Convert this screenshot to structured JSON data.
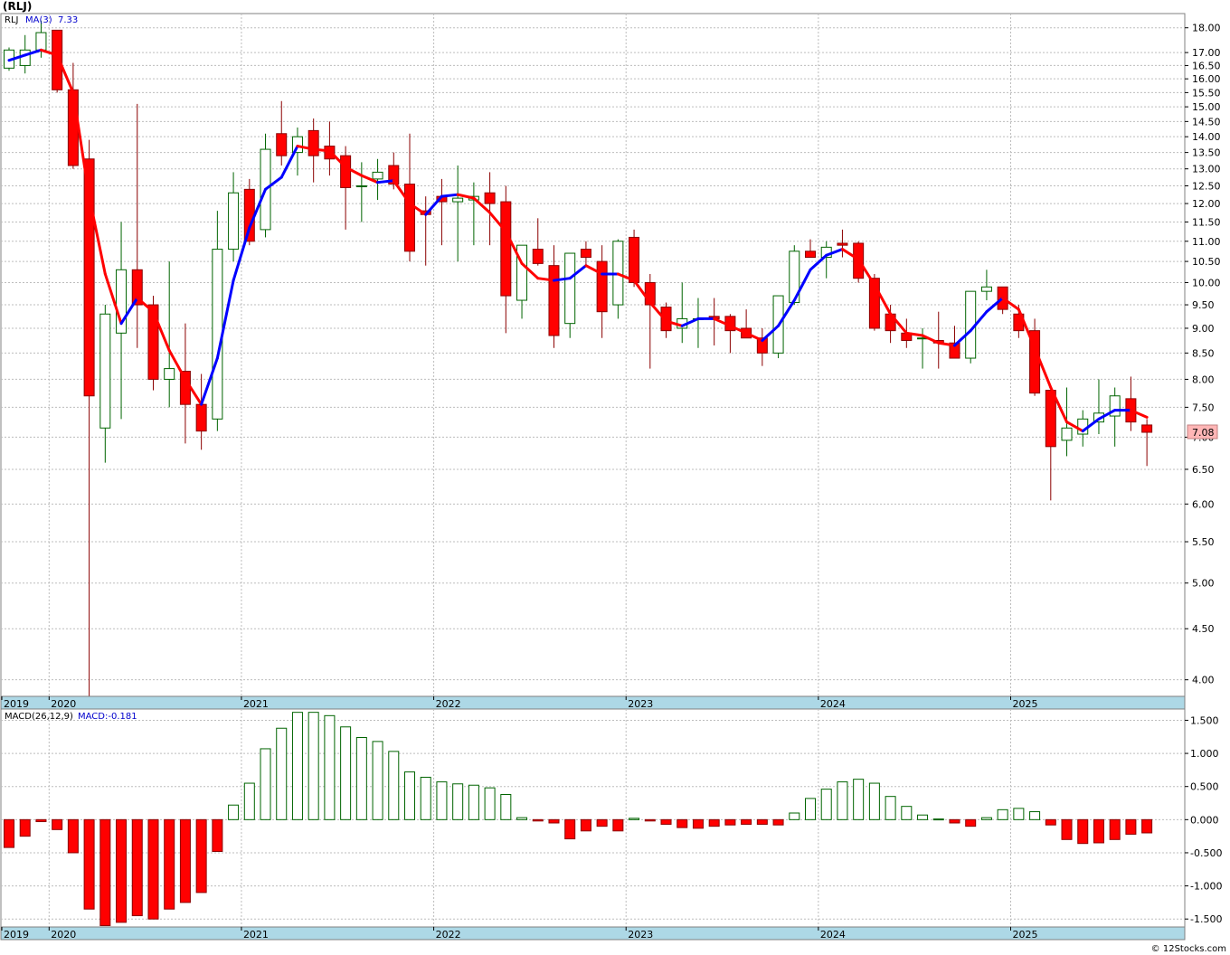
{
  "title": "(RLJ)",
  "price_panel": {
    "legend_symbol": "RLJ",
    "legend_ma_label": "MA(3)",
    "legend_ma_value": "7.33",
    "last_price_label": "7.08"
  },
  "macd_panel": {
    "legend_label": "MACD(26,12,9)",
    "legend_value": "MACD:-0.181"
  },
  "watermark": "© 12Stocks.com",
  "colors": {
    "up_body": "#ffffff",
    "up_outline": "#006400",
    "down_body": "#ff0000",
    "down_outline": "#8b0000",
    "ma_up": "#0000ff",
    "ma_down": "#ff0000",
    "year_bar": "#add8e6",
    "grid": "#bdbdbd"
  },
  "chart_data": [
    {
      "type": "candlestick",
      "interval": "monthly",
      "scale": "log",
      "ylim": [
        3.85,
        18.6
      ],
      "y_ticks": [
        "4.00",
        "4.50",
        "5.00",
        "5.50",
        "6.00",
        "6.50",
        "7.00",
        "7.50",
        "8.00",
        "8.50",
        "9.00",
        "9.50",
        "10.00",
        "10.50",
        "11.00",
        "11.50",
        "12.00",
        "12.50",
        "13.00",
        "13.50",
        "14.00",
        "14.50",
        "15.00",
        "15.50",
        "16.00",
        "16.50",
        "17.00",
        "18.00"
      ],
      "x_labels": [
        "2019",
        "2020",
        "2021",
        "2022",
        "2023",
        "2024",
        "2025"
      ],
      "year_start_index": [
        0,
        3,
        15,
        27,
        39,
        51,
        63
      ],
      "candles": [
        {
          "o": 16.4,
          "h": 17.2,
          "l": 16.3,
          "c": 17.1
        },
        {
          "o": 16.5,
          "h": 17.7,
          "l": 16.2,
          "c": 17.1
        },
        {
          "o": 17.1,
          "h": 18.3,
          "l": 16.8,
          "c": 17.8
        },
        {
          "o": 17.9,
          "h": 17.9,
          "l": 15.5,
          "c": 15.6
        },
        {
          "o": 15.6,
          "h": 16.6,
          "l": 13.0,
          "c": 13.1
        },
        {
          "o": 13.3,
          "h": 13.9,
          "l": 3.85,
          "c": 7.7
        },
        {
          "o": 7.15,
          "h": 9.5,
          "l": 6.6,
          "c": 9.3
        },
        {
          "o": 8.9,
          "h": 11.5,
          "l": 7.3,
          "c": 10.3
        },
        {
          "o": 10.3,
          "h": 15.1,
          "l": 8.6,
          "c": 9.5
        },
        {
          "o": 9.5,
          "h": 9.7,
          "l": 7.8,
          "c": 8.0
        },
        {
          "o": 8.0,
          "h": 10.5,
          "l": 7.5,
          "c": 8.2
        },
        {
          "o": 8.15,
          "h": 9.1,
          "l": 6.9,
          "c": 7.55
        },
        {
          "o": 7.55,
          "h": 8.1,
          "l": 6.8,
          "c": 7.1
        },
        {
          "o": 7.3,
          "h": 11.8,
          "l": 7.1,
          "c": 10.8
        },
        {
          "o": 10.8,
          "h": 12.9,
          "l": 10.5,
          "c": 12.3
        },
        {
          "o": 12.4,
          "h": 12.7,
          "l": 10.9,
          "c": 11.0
        },
        {
          "o": 11.3,
          "h": 14.1,
          "l": 11.1,
          "c": 13.6
        },
        {
          "o": 14.1,
          "h": 15.2,
          "l": 13.1,
          "c": 13.4
        },
        {
          "o": 13.5,
          "h": 14.3,
          "l": 12.8,
          "c": 14.0
        },
        {
          "o": 14.2,
          "h": 14.6,
          "l": 12.6,
          "c": 13.4
        },
        {
          "o": 13.7,
          "h": 14.5,
          "l": 12.8,
          "c": 13.3
        },
        {
          "o": 13.4,
          "h": 13.7,
          "l": 11.3,
          "c": 12.45
        },
        {
          "o": 12.5,
          "h": 13.2,
          "l": 11.5,
          "c": 12.5
        },
        {
          "o": 12.7,
          "h": 13.3,
          "l": 12.1,
          "c": 12.9
        },
        {
          "o": 13.1,
          "h": 13.5,
          "l": 12.4,
          "c": 12.55
        },
        {
          "o": 12.55,
          "h": 14.1,
          "l": 10.5,
          "c": 10.75
        },
        {
          "o": 11.8,
          "h": 12.2,
          "l": 10.4,
          "c": 11.7
        },
        {
          "o": 12.2,
          "h": 12.7,
          "l": 10.9,
          "c": 12.05
        },
        {
          "o": 12.05,
          "h": 13.1,
          "l": 10.5,
          "c": 12.15
        },
        {
          "o": 12.1,
          "h": 12.6,
          "l": 10.9,
          "c": 12.2
        },
        {
          "o": 12.3,
          "h": 12.9,
          "l": 10.9,
          "c": 12.0
        },
        {
          "o": 12.05,
          "h": 12.5,
          "l": 8.9,
          "c": 9.7
        },
        {
          "o": 9.6,
          "h": 10.9,
          "l": 9.2,
          "c": 10.9
        },
        {
          "o": 10.8,
          "h": 11.6,
          "l": 10.4,
          "c": 10.45
        },
        {
          "o": 10.4,
          "h": 10.9,
          "l": 8.6,
          "c": 8.85
        },
        {
          "o": 9.1,
          "h": 10.7,
          "l": 8.8,
          "c": 10.7
        },
        {
          "o": 10.8,
          "h": 11.0,
          "l": 10.4,
          "c": 10.6
        },
        {
          "o": 10.5,
          "h": 10.9,
          "l": 8.8,
          "c": 9.35
        },
        {
          "o": 9.5,
          "h": 11.05,
          "l": 9.2,
          "c": 11.0
        },
        {
          "o": 11.1,
          "h": 11.3,
          "l": 9.9,
          "c": 10.0
        },
        {
          "o": 10.0,
          "h": 10.2,
          "l": 8.2,
          "c": 9.5
        },
        {
          "o": 9.45,
          "h": 9.55,
          "l": 8.8,
          "c": 8.95
        },
        {
          "o": 9.0,
          "h": 10.0,
          "l": 8.7,
          "c": 9.2
        },
        {
          "o": 9.2,
          "h": 9.65,
          "l": 8.6,
          "c": 9.2
        },
        {
          "o": 9.25,
          "h": 9.65,
          "l": 8.65,
          "c": 9.2
        },
        {
          "o": 9.25,
          "h": 9.3,
          "l": 8.5,
          "c": 8.95
        },
        {
          "o": 9.0,
          "h": 9.4,
          "l": 8.8,
          "c": 8.8
        },
        {
          "o": 8.8,
          "h": 9.0,
          "l": 8.25,
          "c": 8.5
        },
        {
          "o": 8.5,
          "h": 9.6,
          "l": 8.4,
          "c": 9.7
        },
        {
          "o": 9.55,
          "h": 10.9,
          "l": 9.5,
          "c": 10.75
        },
        {
          "o": 10.75,
          "h": 11.05,
          "l": 10.6,
          "c": 10.6
        },
        {
          "o": 10.6,
          "h": 11.0,
          "l": 10.1,
          "c": 10.85
        },
        {
          "o": 10.95,
          "h": 11.3,
          "l": 10.6,
          "c": 10.9
        },
        {
          "o": 10.95,
          "h": 11.0,
          "l": 10.0,
          "c": 10.1
        },
        {
          "o": 10.1,
          "h": 10.2,
          "l": 8.95,
          "c": 9.0
        },
        {
          "o": 9.3,
          "h": 9.5,
          "l": 8.7,
          "c": 8.95
        },
        {
          "o": 8.9,
          "h": 9.2,
          "l": 8.6,
          "c": 8.75
        },
        {
          "o": 8.8,
          "h": 9.0,
          "l": 8.2,
          "c": 8.8
        },
        {
          "o": 8.75,
          "h": 9.35,
          "l": 8.2,
          "c": 8.7
        },
        {
          "o": 8.7,
          "h": 9.05,
          "l": 8.4,
          "c": 8.4
        },
        {
          "o": 8.4,
          "h": 9.8,
          "l": 8.3,
          "c": 9.8
        },
        {
          "o": 9.8,
          "h": 10.3,
          "l": 9.6,
          "c": 9.9
        },
        {
          "o": 9.9,
          "h": 9.9,
          "l": 9.3,
          "c": 9.4
        },
        {
          "o": 9.3,
          "h": 9.5,
          "l": 8.8,
          "c": 8.95
        },
        {
          "o": 8.95,
          "h": 9.2,
          "l": 7.7,
          "c": 7.75
        },
        {
          "o": 7.8,
          "h": 7.8,
          "l": 6.05,
          "c": 6.85
        },
        {
          "o": 6.95,
          "h": 7.85,
          "l": 6.7,
          "c": 7.15
        },
        {
          "o": 7.05,
          "h": 7.45,
          "l": 6.85,
          "c": 7.3
        },
        {
          "o": 7.25,
          "h": 8.0,
          "l": 7.05,
          "c": 7.4
        },
        {
          "o": 7.35,
          "h": 7.85,
          "l": 6.85,
          "c": 7.7
        },
        {
          "o": 7.65,
          "h": 8.05,
          "l": 7.1,
          "c": 7.25
        },
        {
          "o": 7.2,
          "h": 7.3,
          "l": 6.55,
          "c": 7.08
        }
      ],
      "ma3": [
        16.7,
        16.9,
        17.1,
        16.9,
        15.5,
        12.2,
        10.2,
        9.1,
        9.65,
        9.35,
        8.55,
        8.0,
        7.55,
        8.4,
        10.05,
        11.35,
        12.4,
        12.75,
        13.7,
        13.6,
        13.55,
        13.05,
        12.8,
        12.6,
        12.65,
        12.0,
        11.7,
        12.2,
        12.25,
        12.15,
        11.75,
        11.25,
        10.45,
        10.1,
        10.05,
        10.1,
        10.4,
        10.2,
        10.2,
        10.05,
        9.55,
        9.15,
        9.05,
        9.2,
        9.2,
        9.05,
        8.9,
        8.75,
        9.05,
        9.6,
        10.3,
        10.65,
        10.8,
        10.55,
        9.95,
        9.3,
        8.9,
        8.85,
        8.7,
        8.65,
        8.95,
        9.35,
        9.65,
        9.4,
        8.6,
        7.85,
        7.25,
        7.1,
        7.3,
        7.45,
        7.45,
        7.33
      ]
    },
    {
      "type": "bar",
      "name": "MACD(26,12,9)",
      "ylim": [
        -1.62,
        1.67
      ],
      "y_ticks": [
        "-1.500",
        "-1.000",
        "-0.500",
        "0.000",
        "0.500",
        "1.000",
        "1.500"
      ],
      "x_labels": [
        "2019",
        "2020",
        "2021",
        "2022",
        "2023",
        "2024",
        "2025"
      ],
      "values": [
        -0.42,
        -0.25,
        -0.03,
        -0.15,
        -0.5,
        -1.35,
        -1.6,
        -1.55,
        -1.45,
        -1.5,
        -1.35,
        -1.25,
        -1.1,
        -0.48,
        0.22,
        0.55,
        1.07,
        1.38,
        1.62,
        1.62,
        1.57,
        1.4,
        1.24,
        1.18,
        1.03,
        0.72,
        0.64,
        0.57,
        0.54,
        0.52,
        0.48,
        0.38,
        0.03,
        -0.02,
        -0.05,
        -0.29,
        -0.17,
        -0.1,
        -0.17,
        0.02,
        -0.02,
        -0.07,
        -0.12,
        -0.13,
        -0.1,
        -0.08,
        -0.07,
        -0.07,
        -0.08,
        0.1,
        0.32,
        0.46,
        0.57,
        0.61,
        0.55,
        0.35,
        0.2,
        0.07,
        0.01,
        -0.05,
        -0.1,
        0.03,
        0.15,
        0.17,
        0.12,
        -0.08,
        -0.3,
        -0.36,
        -0.35,
        -0.3,
        -0.22,
        -0.2
      ]
    }
  ]
}
